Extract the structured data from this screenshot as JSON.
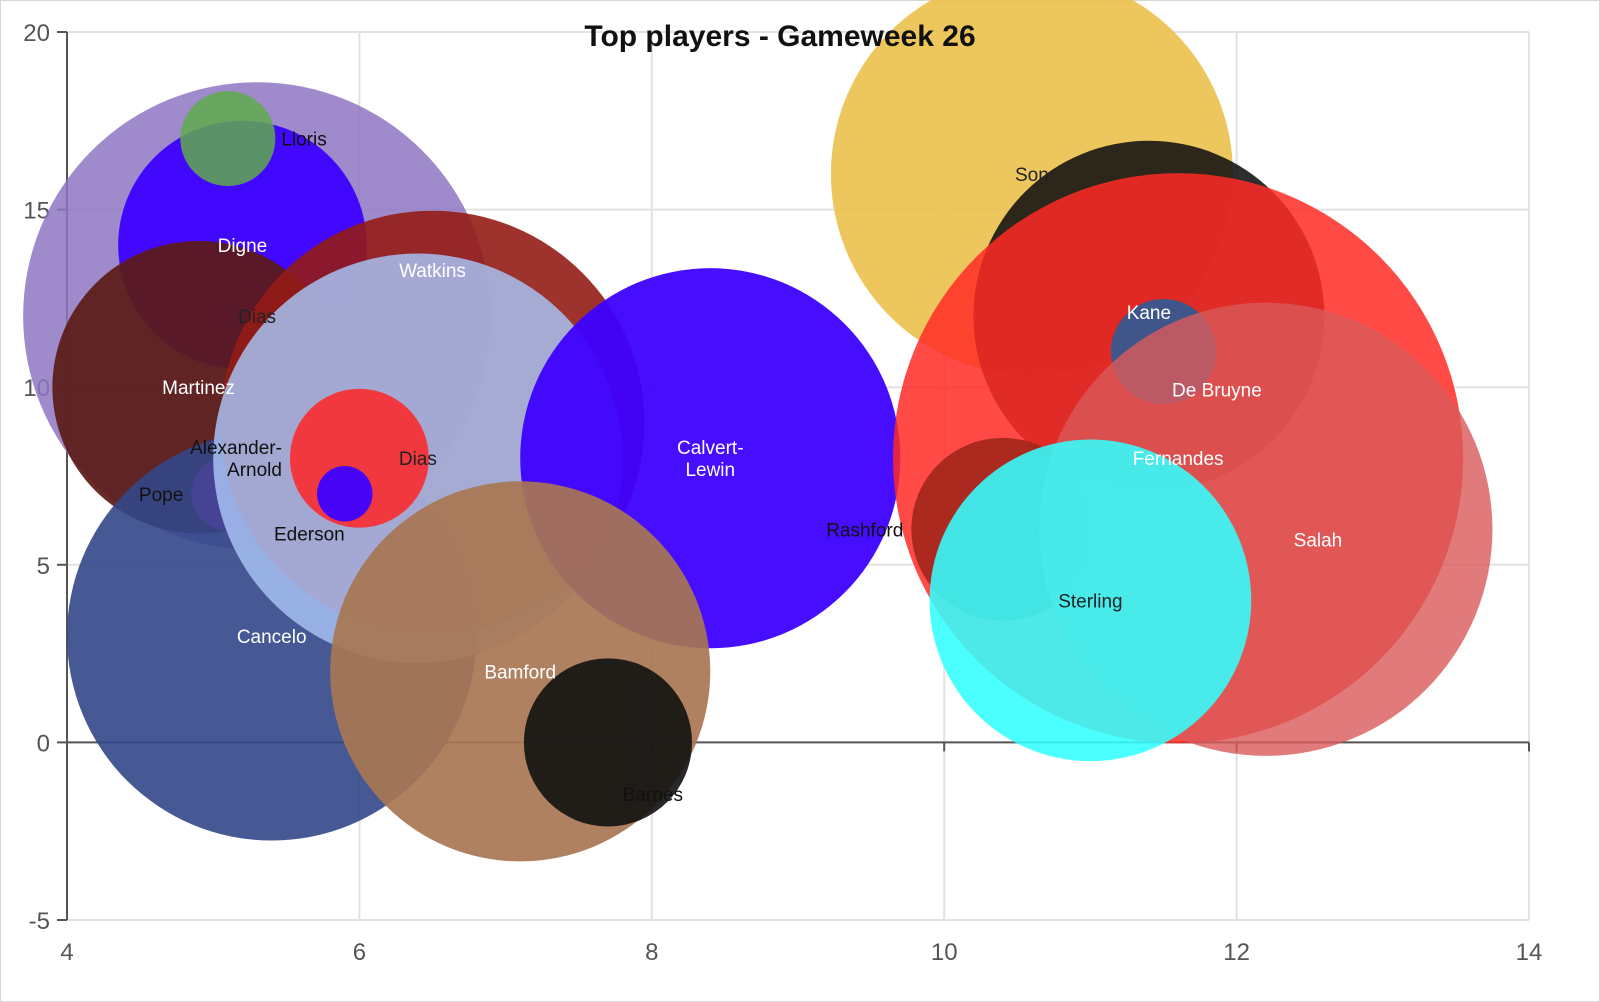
{
  "chart_data": {
    "type": "scatter",
    "title": "Top players - Gameweek 26",
    "xlabel": "",
    "ylabel": "",
    "xlim": [
      4,
      14
    ],
    "ylim": [
      -5,
      20
    ],
    "x_ticks": [
      "4",
      "6",
      "8",
      "10",
      "12",
      "14"
    ],
    "y_ticks": [
      "-5",
      "0",
      "5",
      "10",
      "15",
      "20"
    ],
    "grid": true,
    "legend": "none",
    "points": [
      {
        "label": "Dias",
        "x": 5.3,
        "y": 12,
        "size": 3.2,
        "color": "#8e76c2",
        "opacity": 0.85,
        "label_color": "#222222",
        "label_pos": "center"
      },
      {
        "label": "Digne",
        "x": 5.2,
        "y": 14,
        "size": 1.7,
        "color": "#3d00ff",
        "opacity": 0.95,
        "label_color": "#ffffff",
        "label_pos": "center"
      },
      {
        "label": "Lloris",
        "x": 5.1,
        "y": 17,
        "size": 0.65,
        "color": "#5faa4e",
        "opacity": 0.85,
        "label_color": "#111111",
        "label_pos": "right"
      },
      {
        "label": "Martinez",
        "x": 4.9,
        "y": 10,
        "size": 2.0,
        "color": "#5b1b16",
        "opacity": 0.92,
        "label_color": "#ffffff",
        "label_pos": "center"
      },
      {
        "label": "Pope",
        "x": 5.1,
        "y": 7,
        "size": 0.5,
        "color": "#ff22ff",
        "opacity": 0.95,
        "label_color": "#111111",
        "label_pos": "left"
      },
      {
        "label": "Cancelo",
        "x": 5.4,
        "y": 3,
        "size": 2.8,
        "color": "#33478a",
        "opacity": 0.9,
        "label_color": "#ffffff",
        "label_pos": "center"
      },
      {
        "label": "Watkins",
        "x": 6.5,
        "y": 9,
        "size": 2.9,
        "color": "#931c16",
        "opacity": 0.9,
        "label_color": "#ffffff",
        "label_pos": "top"
      },
      {
        "label": "Dias",
        "x": 6.4,
        "y": 8,
        "size": 2.8,
        "color": "#a7c1f2",
        "opacity": 0.85,
        "label_color": "#222222",
        "label_pos": "center"
      },
      {
        "label": "Alexander-Arnold",
        "x": 6.0,
        "y": 8,
        "size": 0.95,
        "color": "#ff2424",
        "opacity": 0.85,
        "label_color": "#111111",
        "label_pos": "left",
        "label_lines": [
          "Alexander-",
          "Arnold"
        ]
      },
      {
        "label": "Ederson",
        "x": 5.9,
        "y": 7,
        "size": 0.38,
        "color": "#3d00ff",
        "opacity": 0.95,
        "label_color": "#111111",
        "label_pos": "bottom-left"
      },
      {
        "label": "Calvert-Lewin",
        "x": 8.4,
        "y": 8,
        "size": 2.6,
        "color": "#3d00ff",
        "opacity": 0.95,
        "label_color": "#ffffff",
        "label_pos": "center",
        "label_lines": [
          "Calvert-",
          "Lewin"
        ]
      },
      {
        "label": "Bamford",
        "x": 7.1,
        "y": 2,
        "size": 2.6,
        "color": "#a87652",
        "opacity": 0.92,
        "label_color": "#ffffff",
        "label_pos": "center"
      },
      {
        "label": "Barnes",
        "x": 7.7,
        "y": 0,
        "size": 1.15,
        "color": "#111111",
        "opacity": 0.9,
        "label_color": "#111111",
        "label_pos": "bottom-right"
      },
      {
        "label": "Son",
        "x": 10.6,
        "y": 16,
        "size": 2.75,
        "color": "#ebc14c",
        "opacity": 0.9,
        "label_color": "#222222",
        "label_pos": "center"
      },
      {
        "label": "Kane",
        "x": 11.4,
        "y": 12,
        "size": 2.4,
        "color": "#111111",
        "opacity": 0.88,
        "label_color": "#ffffff",
        "label_pos": "top-in"
      },
      {
        "label": "Fernandes",
        "x": 11.6,
        "y": 8,
        "size": 3.9,
        "color": "#ff2a24",
        "opacity": 0.85,
        "label_color": "#ffffff",
        "label_pos": "center"
      },
      {
        "label": "De Bruyne",
        "x": 11.5,
        "y": 11,
        "size": 0.72,
        "color": "#2f5a96",
        "opacity": 0.9,
        "label_color": "#ffffff",
        "label_pos": "bottom-right"
      },
      {
        "label": "Rashford",
        "x": 10.4,
        "y": 6,
        "size": 1.25,
        "color": "#a22619",
        "opacity": 0.9,
        "label_color": "#111111",
        "label_pos": "left"
      },
      {
        "label": "Salah",
        "x": 12.2,
        "y": 6,
        "size": 3.1,
        "color": "#d95a5a",
        "opacity": 0.8,
        "label_color": "#ffffff",
        "label_pos": "center-right"
      },
      {
        "label": "Sterling",
        "x": 11.0,
        "y": 4,
        "size": 2.2,
        "color": "#33ffff",
        "opacity": 0.88,
        "label_color": "#222222",
        "label_pos": "center"
      }
    ]
  }
}
